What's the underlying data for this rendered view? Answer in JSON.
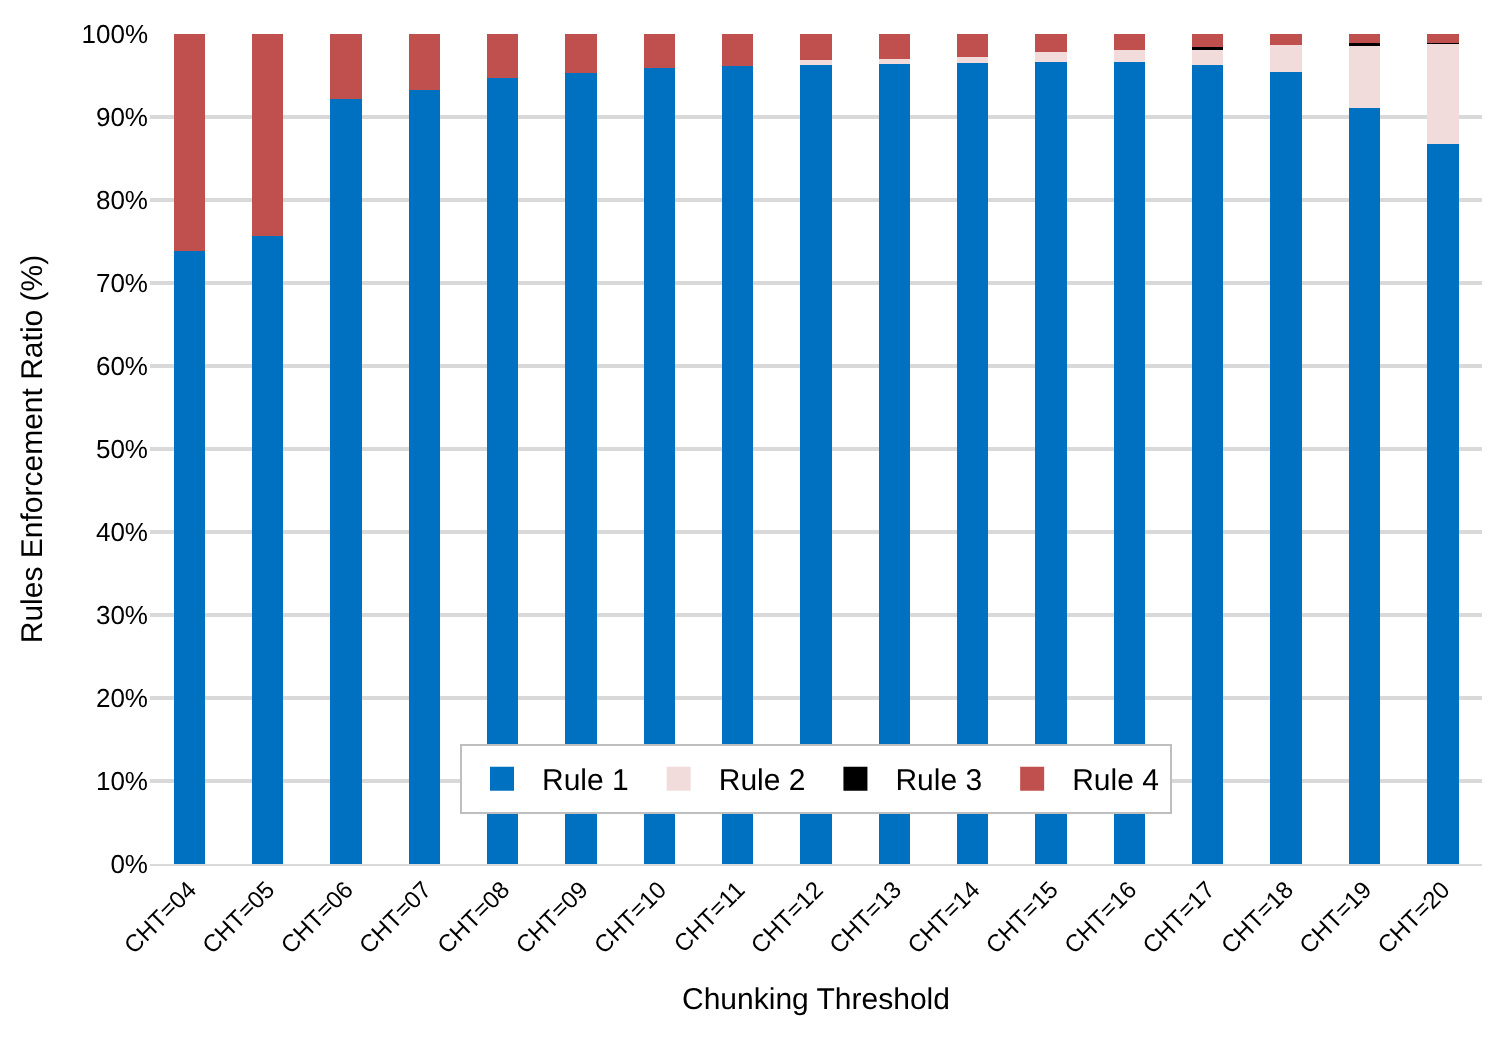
{
  "chart_data": {
    "type": "bar",
    "stacked": true,
    "xlabel": "Chunking Threshold",
    "ylabel": "Rules Enforcement Ratio (%)",
    "categories": [
      "CHT=04",
      "CHT=05",
      "CHT=06",
      "CHT=07",
      "CHT=08",
      "CHT=09",
      "CHT=10",
      "CHT=11",
      "CHT=12",
      "CHT=13",
      "CHT=14",
      "CHT=15",
      "CHT=16",
      "CHT=17",
      "CHT=18",
      "CHT=19",
      "CHT=20"
    ],
    "series": [
      {
        "name": "Rule 1",
        "color": "#0070c0",
        "values": [
          73.8,
          75.7,
          92.2,
          93.2,
          94.7,
          95.3,
          95.9,
          96.1,
          96.3,
          96.4,
          96.5,
          96.6,
          96.6,
          96.3,
          95.4,
          91.1,
          86.8
        ]
      },
      {
        "name": "Rule 2",
        "color": "#f2dcdb",
        "values": [
          0,
          0,
          0,
          0,
          0,
          0,
          0,
          0,
          0.6,
          0.6,
          0.7,
          1.2,
          1.5,
          1.9,
          3.3,
          7.6,
          12.0
        ]
      },
      {
        "name": "Rule 3",
        "color": "#000000",
        "values": [
          0,
          0,
          0,
          0,
          0,
          0,
          0,
          0,
          0,
          0,
          0,
          0,
          0,
          0.2,
          0,
          0.2,
          0.1
        ]
      },
      {
        "name": "Rule 4",
        "color": "#c0504d",
        "values": [
          26.2,
          24.3,
          7.8,
          6.8,
          5.3,
          4.7,
          4.1,
          3.9,
          3.1,
          3.0,
          2.8,
          2.2,
          1.9,
          1.6,
          1.3,
          1.1,
          1.1
        ]
      }
    ],
    "ylim": [
      0,
      100
    ],
    "yticks": [
      {
        "value": 0,
        "label": "0%"
      },
      {
        "value": 10,
        "label": "10%"
      },
      {
        "value": 20,
        "label": "20%"
      },
      {
        "value": 30,
        "label": "30%"
      },
      {
        "value": 40,
        "label": "40%"
      },
      {
        "value": 50,
        "label": "50%"
      },
      {
        "value": 60,
        "label": "60%"
      },
      {
        "value": 70,
        "label": "70%"
      },
      {
        "value": 80,
        "label": "80%"
      },
      {
        "value": 90,
        "label": "90%"
      },
      {
        "value": 100,
        "label": "100%"
      }
    ],
    "grid": "y",
    "legend": "bottom"
  }
}
